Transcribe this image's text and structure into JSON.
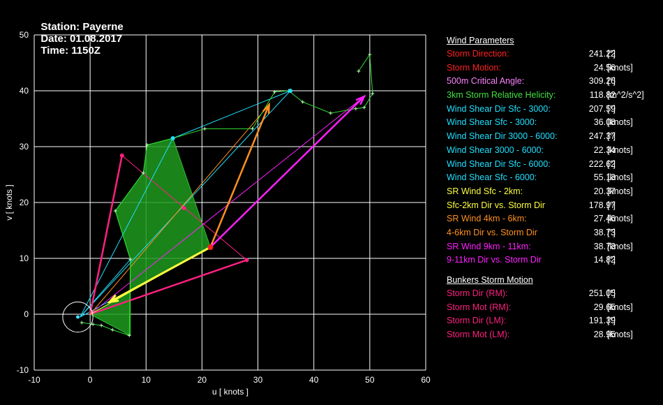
{
  "header": {
    "station": "Station: Payerne",
    "date": "Date: 01.08.2017",
    "time": "Time: 1150Z"
  },
  "chart_data": {
    "type": "scatter",
    "subtype": "hodograph",
    "xlabel": "u  [ knots ]",
    "ylabel": "v  [ knots ]",
    "xlim": [
      -10,
      60
    ],
    "ylim": [
      -10,
      50
    ],
    "xticks": [
      -10,
      0,
      10,
      20,
      30,
      40,
      50,
      60
    ],
    "yticks": [
      -10,
      0,
      10,
      20,
      30,
      40,
      50
    ],
    "grid": true,
    "hodograph_trace": [
      [
        -1.5,
        -1.5
      ],
      [
        0.5,
        -1.8
      ],
      [
        2,
        -2
      ],
      [
        4,
        -2.8
      ],
      [
        7,
        -3.8
      ],
      [
        7.2,
        9.8
      ],
      [
        4.5,
        18.5
      ],
      [
        9.5,
        25.3
      ],
      [
        10.2,
        30.3
      ],
      [
        14.8,
        31.5
      ],
      [
        20.5,
        33.2
      ],
      [
        29,
        33.2
      ],
      [
        33,
        39.8
      ],
      [
        35.5,
        40
      ],
      [
        38,
        38
      ],
      [
        43,
        36
      ],
      [
        47.5,
        36.8
      ],
      [
        49,
        37
      ],
      [
        50.5,
        39.5
      ],
      [
        50,
        46.5
      ],
      [
        48,
        43.5
      ]
    ],
    "helicity_polygon": [
      [
        0,
        0
      ],
      [
        7.2,
        -3.8
      ],
      [
        7.2,
        9.8
      ],
      [
        4.5,
        18.5
      ],
      [
        9.5,
        25.3
      ],
      [
        10.2,
        30.3
      ],
      [
        14.8,
        31.5
      ],
      [
        21.5,
        12
      ]
    ],
    "cyan_vectors_origin": [
      -1.8,
      -0.5
    ],
    "cyan_vector_targets": [
      [
        14.8,
        31.5
      ],
      [
        35.8,
        40
      ],
      [
        21.5,
        12
      ],
      [
        7.2,
        9.8
      ]
    ],
    "storm_motion": [
      21.5,
      12
    ],
    "sr_wind_2km": [
      3.5,
      2.2
    ],
    "sr_wind_4_6km": [
      32,
      37.5
    ],
    "sr_wind_9_11km": [
      49,
      39
    ],
    "bunkers_rm": [
      28,
      9.7
    ],
    "bunkers_lm": [
      5.7,
      28.4
    ],
    "bunkers_lm_mid": [
      16.8,
      19
    ],
    "circle_center": [
      -2.2,
      -0.5
    ],
    "circle_radius": 2.7
  },
  "panel": {
    "wind_title": "Wind Parameters",
    "bunkers_title": "Bunkers Storm Motion",
    "colors": {
      "red": "#ff2020",
      "pink": "#ff80ff",
      "green": "#40e040",
      "cyan": "#20e0ff",
      "yellow": "#ffff40",
      "orange": "#ff9020",
      "magenta": "#ff20ff",
      "crimson": "#ff2080"
    },
    "groups": [
      [
        {
          "label": "Storm Direction:",
          "value": "241.22",
          "unit": "[°]",
          "color": "#ff2020"
        },
        {
          "label": "Storm Motion:",
          "value": "24.56",
          "unit": "[knots]",
          "color": "#ff2020"
        }
      ],
      [
        {
          "label": "500m Critical Angle:",
          "value": "309.26",
          "unit": "[°]",
          "color": "#ff80ff"
        }
      ],
      [
        {
          "label": "3km Storm Relative Helicity:",
          "value": "118.82",
          "unit": "[m^2/s^2]",
          "color": "#40e040"
        }
      ],
      [
        {
          "label": "Wind Shear Dir Sfc - 3000:",
          "value": "207.59",
          "unit": "[°]",
          "color": "#20e0ff"
        },
        {
          "label": "Wind Shear Sfc - 3000:",
          "value": "36.08",
          "unit": "[knots]",
          "color": "#20e0ff"
        },
        {
          "label": "Wind Shear Dir 3000 - 6000:",
          "value": "247.37",
          "unit": "[°]",
          "color": "#20e0ff"
        },
        {
          "label": "Wind Shear 3000 - 6000:",
          "value": "22.34",
          "unit": "[knots]",
          "color": "#20e0ff"
        },
        {
          "label": "Wind Shear Dir Sfc - 6000:",
          "value": "222.62",
          "unit": "[°]",
          "color": "#20e0ff"
        },
        {
          "label": "Wind Shear Sfc - 6000:",
          "value": "55.13",
          "unit": "[knots]",
          "color": "#20e0ff"
        }
      ],
      [
        {
          "label": "SR Wind Sfc - 2km:",
          "value": "20.37",
          "unit": "[knots]",
          "color": "#ffff40"
        },
        {
          "label": "Sfc-2km Dir vs. Storm Dir",
          "value": "178.97",
          "unit": "[°]",
          "color": "#ffff40"
        },
        {
          "label": "SR Wind 4km - 6km:",
          "value": "27.46",
          "unit": "[knots]",
          "color": "#ff9020"
        },
        {
          "label": "4-6km Dir vs. Storm Dir",
          "value": "38.73",
          "unit": "[°]",
          "color": "#ff9020"
        },
        {
          "label": "SR Wind 9km - 11km:",
          "value": "38.73",
          "unit": "[knots]",
          "color": "#ff20ff"
        },
        {
          "label": "9-11km Dir vs. Storm Dir",
          "value": "14.82",
          "unit": "[°]",
          "color": "#ff20ff"
        }
      ]
    ],
    "bunkers": [
      {
        "label": "Storm Dir (RM):",
        "value": "251.05",
        "unit": "[°]",
        "color": "#ff2080"
      },
      {
        "label": "Storm Mot (RM):",
        "value": "29.65",
        "unit": "[knots]",
        "color": "#ff2080"
      },
      {
        "label": "Storm Dir (LM):",
        "value": "191.39",
        "unit": "[°]",
        "color": "#ff2080"
      },
      {
        "label": "Storm Mot (LM):",
        "value": "28.95",
        "unit": "[knots]",
        "color": "#ff2080"
      }
    ]
  }
}
